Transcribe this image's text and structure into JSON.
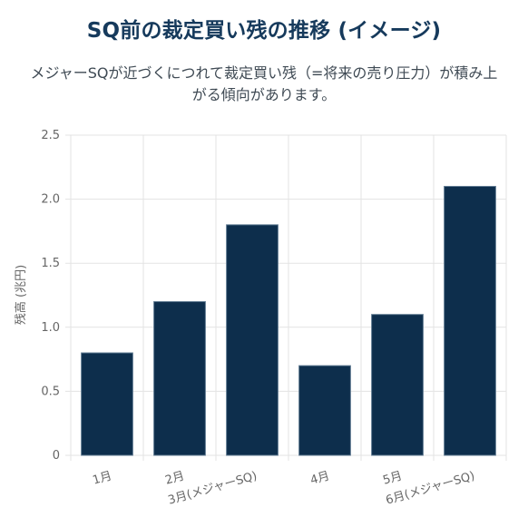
{
  "header": {
    "title": "SQ前の裁定買い残の推移 (イメージ)",
    "subtitle": "メジャーSQが近づくにつれて裁定買い残（=将来の売り圧力）が積み上がる傾向があります。"
  },
  "chart_data": {
    "type": "bar",
    "categories": [
      "1月",
      "2月",
      "3月(メジャーSQ)",
      "4月",
      "5月",
      "6月(メジャーSQ)"
    ],
    "series": [
      {
        "values": [
          0.8,
          1.2,
          1.8,
          0.7,
          1.1,
          2.1
        ]
      }
    ],
    "ylabel": "残高 (兆円)",
    "xlabel": "",
    "ylim": [
      0,
      2.5
    ],
    "yticks": [
      "0",
      "0.5",
      "1.0",
      "1.5",
      "2.0",
      "2.5"
    ],
    "grid": true,
    "colors": {
      "bar": "#0d2e4c",
      "bar_border": "#5f7a91",
      "grid": "#e3e3e3",
      "axis_text": "#666666"
    }
  }
}
